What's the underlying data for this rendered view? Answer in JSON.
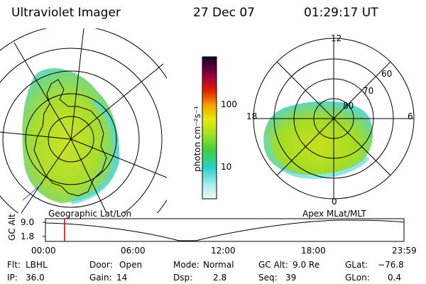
{
  "header": {
    "title": "Ultraviolet Imager",
    "date": "27 Dec 07",
    "time": "01:29:17 UT"
  },
  "colorbar": {
    "label": "photon cm⁻²s⁻¹",
    "ticks": [
      "100",
      "10"
    ],
    "scale": "log"
  },
  "left_map": {
    "caption": "Geographic Lat/Lon"
  },
  "right_map": {
    "caption": "Apex MLat/MLT",
    "mlt_labels": [
      "12",
      "18",
      "6",
      "0"
    ],
    "lat_labels": [
      "60",
      "70",
      "80"
    ]
  },
  "altitude_strip": {
    "axis_label": "GC Alt",
    "y_ticks": [
      "9.0",
      "1.8"
    ],
    "x_ticks": [
      "00:00",
      "06:00",
      "12:00",
      "18:00",
      "23:59"
    ],
    "marker_time": "01:29:17"
  },
  "status": {
    "filter_label": "Flt:",
    "filter_value": "LBHL",
    "ip_label": "IP:",
    "ip_value": "36.0",
    "door_label": "Door:",
    "door_value": "Open",
    "gain_label": "Gain:",
    "gain_value": "14",
    "mode_label": "Mode:",
    "mode_value": "Normal",
    "dsp_label": "Dsp:",
    "dsp_value": "2.8",
    "gcalt_label": "GC Alt:",
    "gcalt_value": "9.0 Re",
    "seq_label": "Seq:",
    "seq_value": "39",
    "glat_label": "GLat:",
    "glat_value": "−76.8",
    "glon_label": "GLon:",
    "glon_value": "0.4"
  },
  "colors": {
    "aurora_core": "#9fdc1e",
    "aurora_mid": "#d8e81c",
    "aurora_edge": "#4fd8d0",
    "marker": "#cc0000"
  }
}
